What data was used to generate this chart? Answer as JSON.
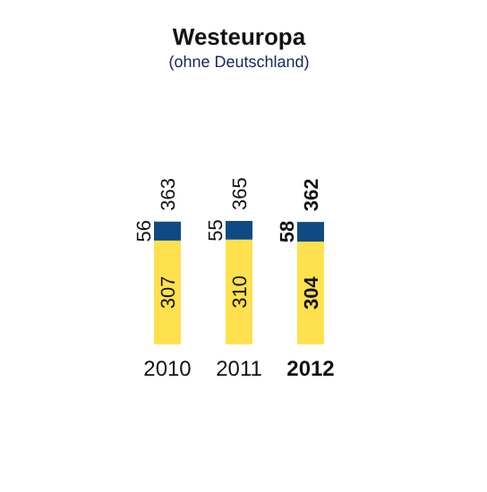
{
  "chart_data": {
    "type": "bar",
    "stacked": true,
    "title": "Westeuropa",
    "subtitle": "(ohne Deutschland)",
    "categories": [
      "2010",
      "2011",
      "2012"
    ],
    "series": [
      {
        "color": "#ffe04f",
        "values": [
          307,
          310,
          304
        ]
      },
      {
        "color": "#0f4a85",
        "values": [
          56,
          55,
          58
        ]
      }
    ],
    "data_labels": true,
    "totals": [
      "363",
      "365",
      "362"
    ]
  }
}
